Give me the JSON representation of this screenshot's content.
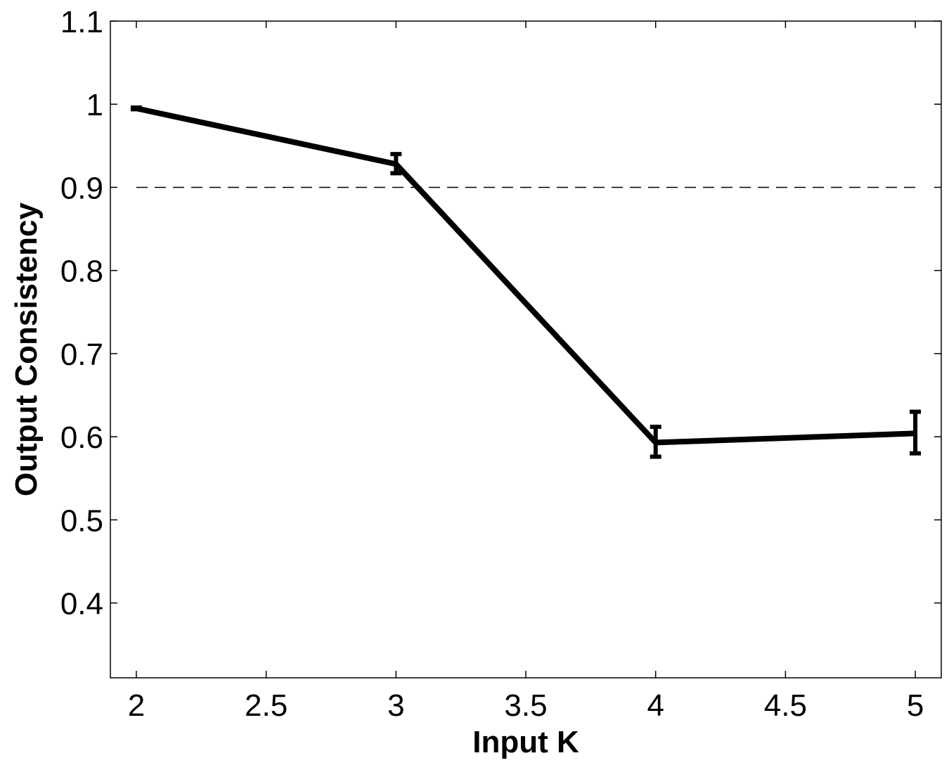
{
  "chart_data": {
    "type": "line",
    "title": "",
    "xlabel": "Input K",
    "ylabel": "Output Consistency",
    "xlim": [
      1.9,
      5.1
    ],
    "ylim": [
      0.31,
      1.1
    ],
    "xticks": [
      2,
      2.5,
      3,
      3.5,
      4,
      4.5,
      5
    ],
    "xtick_labels": [
      "2",
      "2.5",
      "3",
      "3.5",
      "4",
      "4.5",
      "5"
    ],
    "yticks": [
      0.4,
      0.5,
      0.6,
      0.7,
      0.8,
      0.9,
      1,
      1.1
    ],
    "ytick_labels": [
      "0.4",
      "0.5",
      "0.6",
      "0.7",
      "0.8",
      "0.9",
      "1",
      "1.1"
    ],
    "grid": false,
    "series": [
      {
        "x": [
          2,
          3,
          4,
          5
        ],
        "y": [
          0.995,
          0.928,
          0.593,
          0.604
        ],
        "error_low": [
          0.994,
          0.917,
          0.576,
          0.58
        ],
        "error_high": [
          0.996,
          0.94,
          0.612,
          0.63
        ],
        "color": "#000000"
      }
    ],
    "reference_line": {
      "y": 0.9,
      "style": "dashed",
      "color": "#000000"
    }
  }
}
